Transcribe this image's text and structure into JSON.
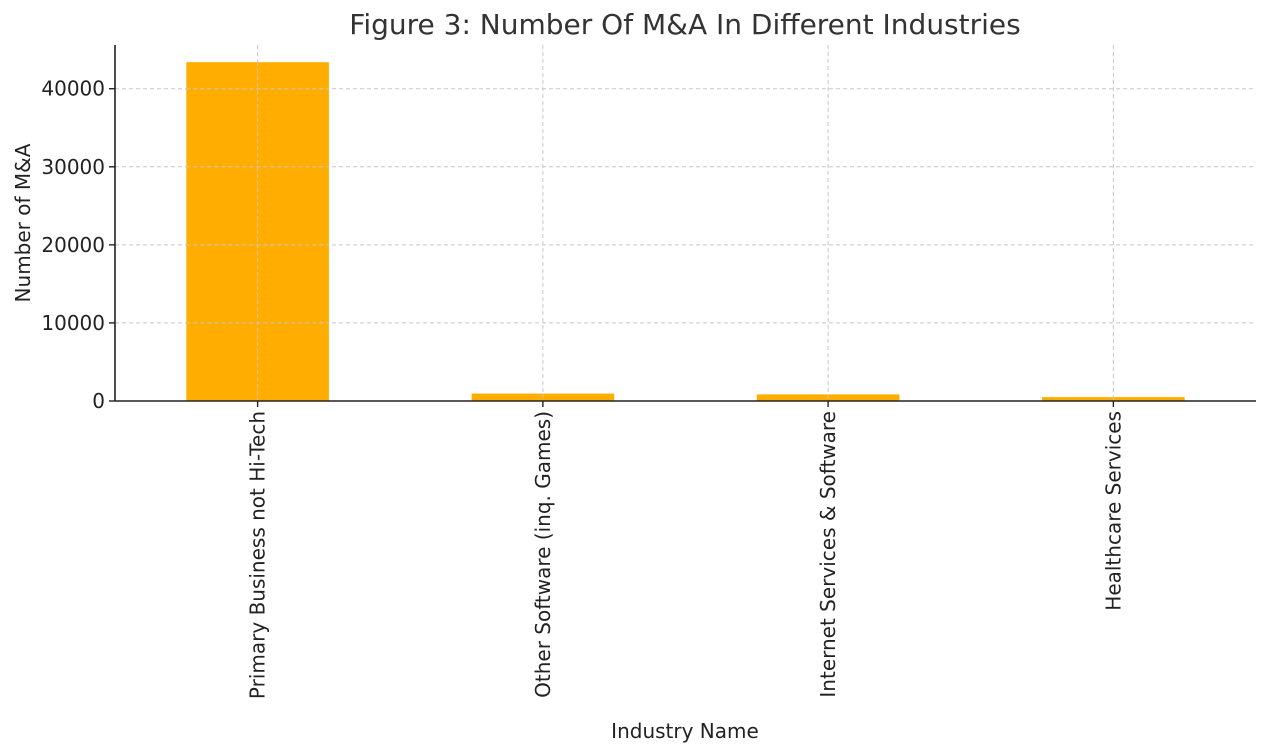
{
  "chart_data": {
    "type": "bar",
    "title": "Figure 3: Number Of M&A In Different Industries",
    "xlabel": "Industry Name",
    "ylabel": "Number of M&A",
    "categories": [
      "Primary Business not Hi-Tech",
      "Other Software (inq. Games)",
      "Internet Services & Software",
      "Healthcare Services"
    ],
    "values": [
      43400,
      950,
      850,
      500
    ],
    "ylim": [
      0,
      45600
    ],
    "yticks": [
      0,
      10000,
      20000,
      30000,
      40000
    ],
    "grid": true,
    "bar_color": "#FFAE00",
    "legend": "none"
  }
}
